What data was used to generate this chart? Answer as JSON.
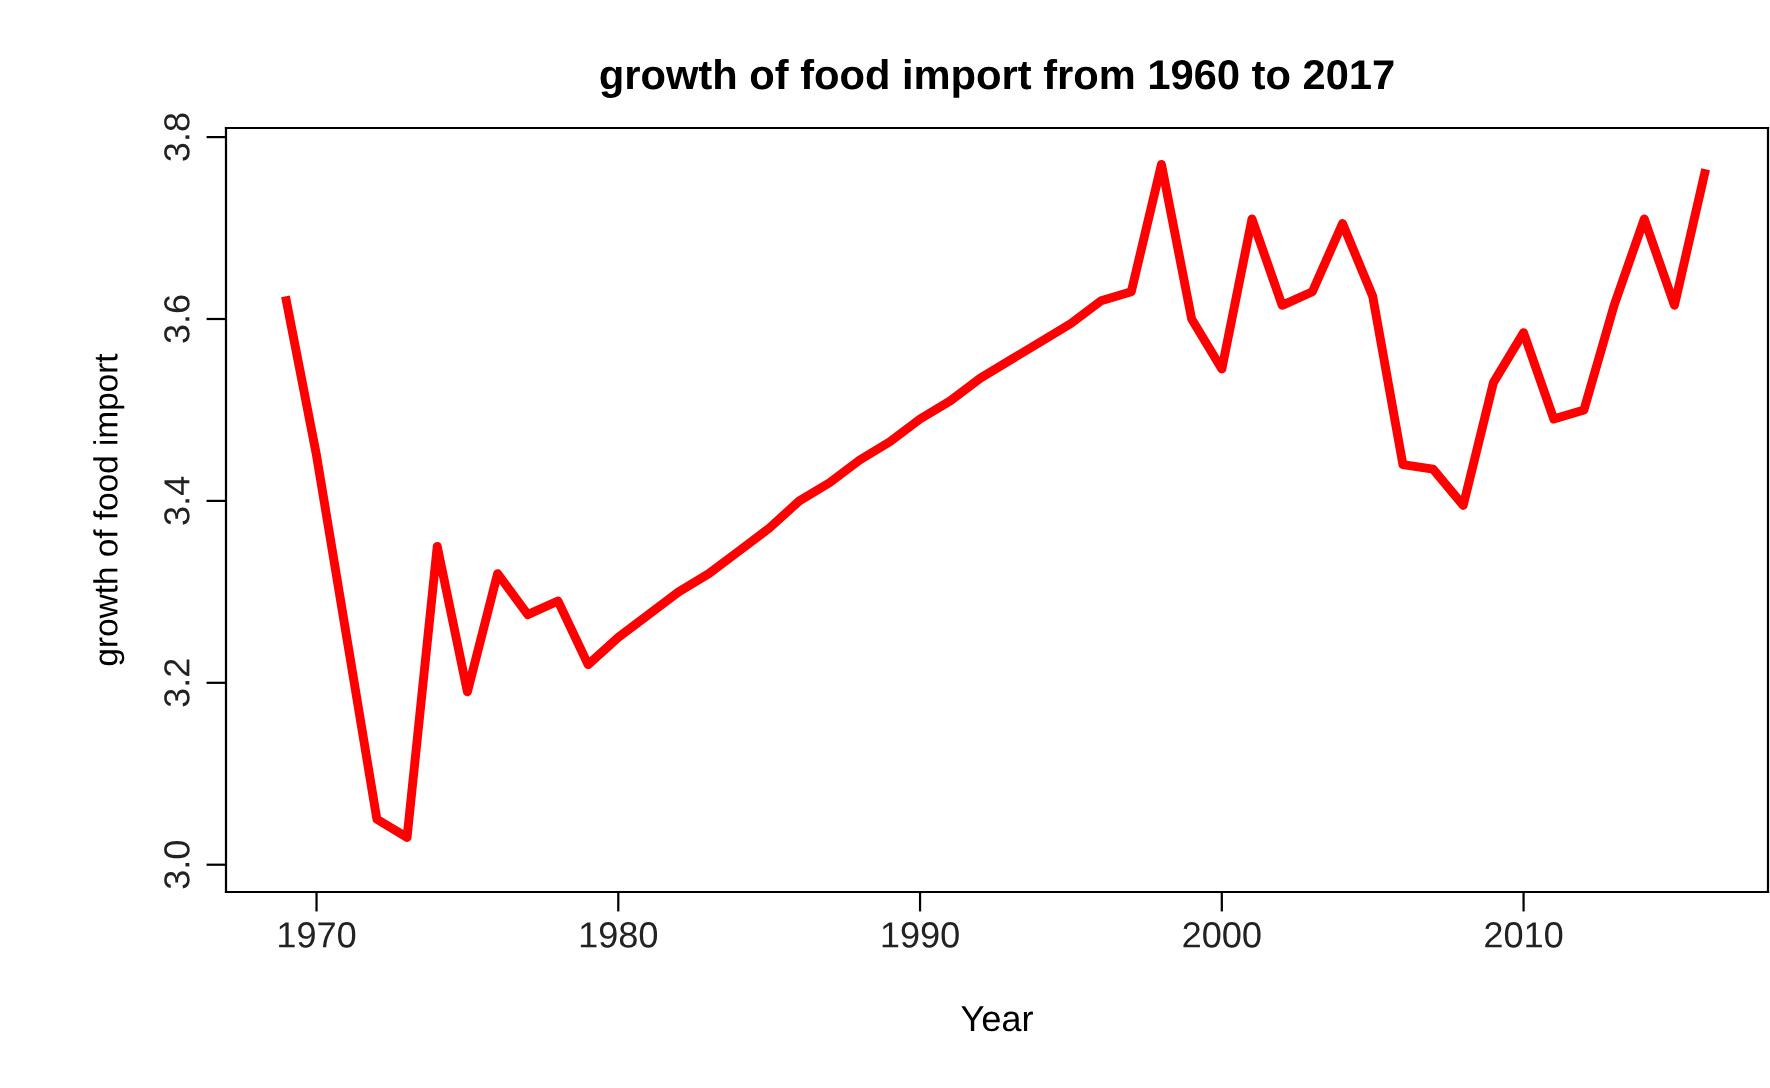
{
  "chart_data": {
    "type": "line",
    "title": "growth of food import from 1960 to 2017",
    "xlabel": "Year",
    "ylabel": "growth of food import",
    "x": [
      1969,
      1970,
      1971,
      1972,
      1973,
      1974,
      1975,
      1976,
      1977,
      1978,
      1979,
      1980,
      1981,
      1982,
      1983,
      1984,
      1985,
      1986,
      1987,
      1988,
      1989,
      1990,
      1991,
      1992,
      1993,
      1994,
      1995,
      1996,
      1997,
      1998,
      1999,
      2000,
      2001,
      2002,
      2003,
      2004,
      2005,
      2006,
      2007,
      2008,
      2009,
      2010,
      2011,
      2012,
      2013,
      2014,
      2015,
      2016
    ],
    "series": [
      {
        "color": "#ff0000",
        "values": [
          3.62,
          3.45,
          3.25,
          3.05,
          3.03,
          3.35,
          3.19,
          3.32,
          3.275,
          3.29,
          3.22,
          3.25,
          3.275,
          3.3,
          3.32,
          3.345,
          3.37,
          3.4,
          3.42,
          3.445,
          3.465,
          3.49,
          3.51,
          3.535,
          3.555,
          3.575,
          3.595,
          3.62,
          3.63,
          3.77,
          3.6,
          3.545,
          3.71,
          3.615,
          3.63,
          3.705,
          3.625,
          3.44,
          3.435,
          3.395,
          3.53,
          3.585,
          3.49,
          3.5,
          3.615,
          3.71,
          3.615,
          3.76
        ]
      }
    ],
    "xlim": [
      1967,
      2018.1
    ],
    "ylim": [
      2.97,
      3.81
    ],
    "xticks": [
      1970,
      1980,
      1990,
      2000,
      2010
    ],
    "yticks": [
      {
        "value": 3.0,
        "label": "3.0"
      },
      {
        "value": 3.2,
        "label": "3.2"
      },
      {
        "value": 3.4,
        "label": "3.4"
      },
      {
        "value": 3.6,
        "label": "3.6"
      },
      {
        "value": 3.8,
        "label": "3.8"
      }
    ],
    "marker": "none",
    "line_style": "solid"
  }
}
